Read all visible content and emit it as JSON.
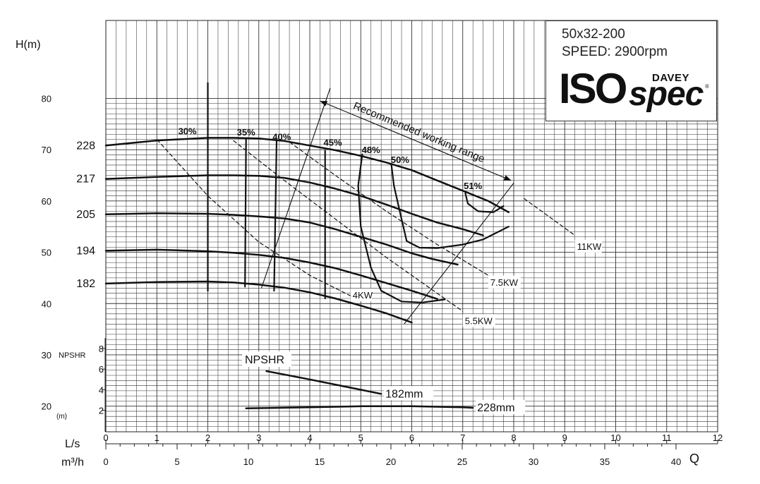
{
  "chart_data": {
    "type": "line",
    "title": "50x32-200",
    "subtitle": "SPEED: 2900rpm",
    "brand": {
      "iso": "ISO",
      "spec": "spec",
      "maker": "DAVEY",
      "reg": "®"
    },
    "head_axis": {
      "label": "H(m)",
      "range": [
        15,
        80
      ],
      "ticks": [
        "80",
        "70",
        "60",
        "50",
        "40",
        "30",
        "20"
      ]
    },
    "npsh_axis": {
      "label": "NPSHR",
      "unit": "(m)",
      "range": [
        0,
        10
      ],
      "ticks": [
        "8",
        "6",
        "4",
        "2"
      ]
    },
    "flow_axis_ls": {
      "label": "L/s",
      "range": [
        0,
        12
      ],
      "ticks": [
        "0",
        "1",
        "2",
        "3",
        "4",
        "5",
        "6",
        "7",
        "8",
        "9",
        "10",
        "11",
        "12"
      ]
    },
    "flow_axis_m3h": {
      "label": "m³/h",
      "range": [
        0,
        40
      ],
      "ticks": [
        "0",
        "5",
        "10",
        "15",
        "20",
        "25",
        "30",
        "35",
        "40"
      ]
    },
    "q_label": "Q",
    "grid": true,
    "series": [
      {
        "name": "228",
        "x": [
          0,
          1.0,
          2.0,
          2.5,
          3.0,
          3.5,
          4.0,
          4.5,
          5.0,
          5.5,
          6.0,
          6.5,
          7.0,
          7.5,
          7.9
        ],
        "y": [
          70.8,
          71.8,
          72.3,
          72.3,
          72.2,
          71.7,
          70.8,
          69.9,
          68.8,
          67.5,
          66.0,
          64.0,
          62.0,
          60.0,
          57.8
        ]
      },
      {
        "name": "217",
        "x": [
          0,
          1.0,
          2.0,
          2.5,
          3.0,
          3.5,
          4.0,
          4.5,
          5.0,
          5.5,
          6.0,
          6.5,
          7.0,
          7.4
        ],
        "y": [
          64.3,
          64.7,
          65.0,
          65.0,
          64.9,
          64.5,
          63.6,
          62.4,
          61.0,
          59.3,
          57.5,
          55.8,
          54.5,
          53.3
        ]
      },
      {
        "name": "205",
        "x": [
          0,
          1.0,
          2.0,
          2.5,
          3.0,
          3.5,
          4.0,
          4.5,
          5.0,
          5.5,
          6.0,
          6.4,
          6.9
        ],
        "y": [
          57.4,
          57.6,
          57.5,
          57.3,
          57.0,
          56.6,
          55.8,
          54.5,
          53.0,
          51.5,
          49.8,
          48.7,
          47.6
        ]
      },
      {
        "name": "194",
        "x": [
          0,
          1.0,
          2.0,
          2.5,
          3.0,
          3.5,
          4.0,
          4.5,
          5.0,
          5.5,
          6.0,
          6.5
        ],
        "y": [
          50.3,
          50.5,
          50.2,
          49.9,
          49.5,
          48.9,
          48.0,
          46.9,
          45.5,
          44.0,
          42.5,
          40.9
        ]
      },
      {
        "name": "182",
        "x": [
          0,
          1.0,
          2.0,
          2.5,
          3.0,
          3.5,
          4.0,
          4.5,
          5.0,
          5.5,
          6.0
        ],
        "y": [
          43.9,
          44.2,
          44.3,
          44.1,
          43.7,
          43.1,
          42.2,
          41.0,
          39.6,
          38.1,
          36.3
        ]
      }
    ],
    "series_labels": [
      "228",
      "217",
      "205",
      "194",
      "182"
    ],
    "efficiency": [
      {
        "label": "30%",
        "x": [
          2.0,
          2.0
        ],
        "y": [
          83.0,
          42.5
        ]
      },
      {
        "label": "35%",
        "x": [
          2.75,
          2.73
        ],
        "y": [
          72.2,
          43.3
        ]
      },
      {
        "label": "40%",
        "x": [
          3.35,
          3.3
        ],
        "y": [
          71.8,
          42.5
        ]
      },
      {
        "label": "45%",
        "x": [
          4.3,
          4.3
        ],
        "y": [
          69.8,
          41.0
        ]
      },
      {
        "label": "48%",
        "x": [
          5.03,
          4.95,
          5.0,
          5.2,
          5.4,
          5.8,
          6.2,
          6.65
        ],
        "y": [
          69.1,
          63.0,
          55.0,
          47.0,
          42.5,
          40.4,
          40.2,
          40.8
        ]
      },
      {
        "label": "50%",
        "x": [
          5.6,
          5.65,
          5.8,
          5.9,
          6.15,
          6.5,
          7.0,
          7.4,
          7.9
        ],
        "y": [
          67.1,
          63.0,
          56.5,
          52.2,
          50.9,
          50.8,
          51.5,
          52.5,
          55.0
        ]
      },
      {
        "label": "51%",
        "x": [
          7.05,
          7.1,
          7.3,
          7.6,
          7.8
        ],
        "y": [
          61.5,
          59.5,
          58.0,
          57.8,
          59.0
        ]
      }
    ],
    "efficiency_label_points": {
      "x": [
        1.6,
        2.75,
        3.45,
        4.45,
        5.2,
        5.77,
        7.2
      ],
      "y": [
        73.0,
        72.8,
        71.9,
        70.8,
        69.3,
        67.4,
        62.3
      ]
    },
    "power": [
      {
        "label": "4KW",
        "x": [
          1.0,
          2.0,
          3.0,
          4.0,
          4.8
        ],
        "y": [
          72.0,
          61.0,
          52.0,
          45.5,
          41.5
        ]
      },
      {
        "label": "5.5KW",
        "x": [
          2.5,
          3.5,
          4.5,
          5.5,
          6.5,
          7.0
        ],
        "y": [
          71.8,
          64.0,
          56.5,
          49.0,
          42.0,
          38.5
        ]
      },
      {
        "label": "7.5KW",
        "x": [
          3.6,
          4.5,
          5.5,
          6.5,
          7.5
        ],
        "y": [
          71.5,
          65.0,
          58.0,
          51.5,
          45.5
        ]
      },
      {
        "label": "11KW",
        "x": [
          8.2,
          9.2
        ],
        "y": [
          60.5,
          53.3
        ]
      }
    ],
    "power_label_anchor": {
      "x": [
        4.8,
        7.0,
        7.5,
        9.2
      ],
      "y": [
        41.0,
        36.0,
        43.5,
        50.5
      ]
    },
    "working_range": {
      "label": "Recommended working range",
      "line_start": {
        "x": [
          4.4,
          3.05
        ],
        "y": [
          82.0,
          43.0
        ]
      },
      "line_end": {
        "x": [
          8.0,
          5.85
        ],
        "y": [
          63.5,
          36.0
        ]
      },
      "arrow_from": {
        "x": 4.2,
        "y": 79.5
      },
      "arrow_to": {
        "x": 7.95,
        "y": 64.0
      }
    },
    "npshr": [
      {
        "name": "182mm",
        "x": [
          3.15,
          4.0,
          5.0,
          5.4
        ],
        "y": [
          5.8,
          5.0,
          4.0,
          3.6
        ]
      },
      {
        "name": "228mm",
        "x": [
          2.75,
          4.0,
          5.0,
          6.0,
          7.0,
          7.2
        ],
        "y": [
          2.2,
          2.3,
          2.4,
          2.4,
          2.3,
          2.25
        ]
      }
    ],
    "npshr_label": "NPSHR"
  }
}
